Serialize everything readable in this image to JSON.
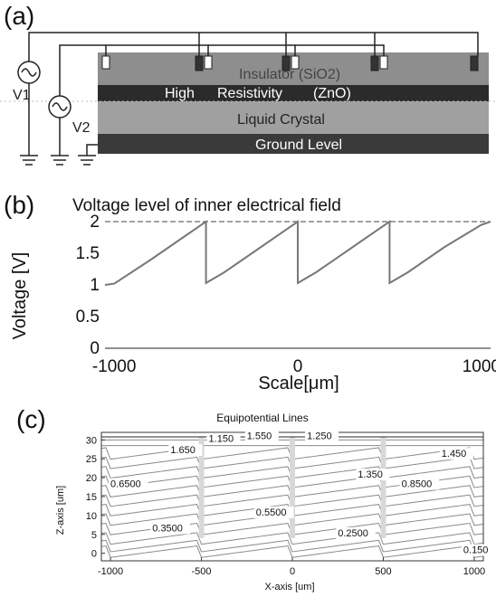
{
  "panel_a": {
    "label": "(a)",
    "source_labels": [
      "V1",
      "V2"
    ],
    "layers": [
      "Insulator (SiO2)",
      "High",
      "Resistivity",
      "(ZnO)",
      "Liquid Crystal",
      "Ground Level"
    ],
    "colors": {
      "insulator": "#8e8e8e",
      "zno": "#2b2b2b",
      "lc": "#9a9a9a",
      "ground": "#3a3a3a"
    }
  },
  "panel_b": {
    "label": "(b)",
    "chart_data": {
      "type": "line",
      "title": "Voltage level of inner electrical field",
      "xlabel": "Scale[μm]",
      "ylabel": "Voltage [V]",
      "xlim": [
        -1050,
        1050
      ],
      "ylim": [
        0,
        2
      ],
      "x_ticks": [
        -1000,
        0,
        1000
      ],
      "x_tick_labels": [
        "-1000",
        "0",
        "1000"
      ],
      "y_ticks": [
        0,
        0.5,
        1,
        1.5,
        2
      ],
      "y_tick_labels": [
        "0",
        "0.5",
        "1",
        "1.5",
        "2"
      ],
      "series": [
        {
          "x": [
            -1050,
            -1000,
            -800,
            -600,
            -500,
            -500,
            -400,
            -200,
            0,
            0,
            100,
            300,
            500,
            500,
            600,
            800,
            1000,
            1050
          ],
          "y": [
            1.0,
            1.02,
            1.4,
            1.8,
            2.0,
            1.03,
            1.2,
            1.6,
            2.0,
            1.03,
            1.2,
            1.6,
            2.0,
            1.03,
            1.2,
            1.6,
            1.95,
            2.0
          ]
        }
      ]
    }
  },
  "panel_c": {
    "label": "(c)",
    "chart_data": {
      "type": "line",
      "title": "Equipotential Lines",
      "xlabel": "X-axis [um]",
      "ylabel": "Z-axis [um]",
      "xlim": [
        -1050,
        1050
      ],
      "ylim": [
        -2,
        32
      ],
      "x_ticks": [
        -1000,
        -500,
        0,
        500,
        1000
      ],
      "x_tick_labels": [
        "-1000",
        "-500",
        "0",
        "500",
        "1000"
      ],
      "y_ticks": [
        0,
        5,
        10,
        15,
        20,
        25,
        30
      ],
      "y_tick_labels": [
        "0",
        "5",
        "10",
        "15",
        "20",
        "25",
        "30"
      ],
      "annotations": [
        {
          "text": "1.150",
          "x": -460,
          "y": 29.5
        },
        {
          "text": "1.550",
          "x": -250,
          "y": 30.2
        },
        {
          "text": "1.250",
          "x": 80,
          "y": 30.2
        },
        {
          "text": "1.650",
          "x": -670,
          "y": 26.5
        },
        {
          "text": "1.450",
          "x": 820,
          "y": 25.5
        },
        {
          "text": "0.6500",
          "x": -1000,
          "y": 17.5
        },
        {
          "text": "1.350",
          "x": 360,
          "y": 20
        },
        {
          "text": "0.8500",
          "x": 600,
          "y": 17.5
        },
        {
          "text": "0.5500",
          "x": -200,
          "y": 10
        },
        {
          "text": "0.3500",
          "x": -770,
          "y": 5.8
        },
        {
          "text": "0.2500",
          "x": 250,
          "y": 4.5
        },
        {
          "text": "0.150",
          "x": 940,
          "y": 0
        }
      ]
    }
  }
}
